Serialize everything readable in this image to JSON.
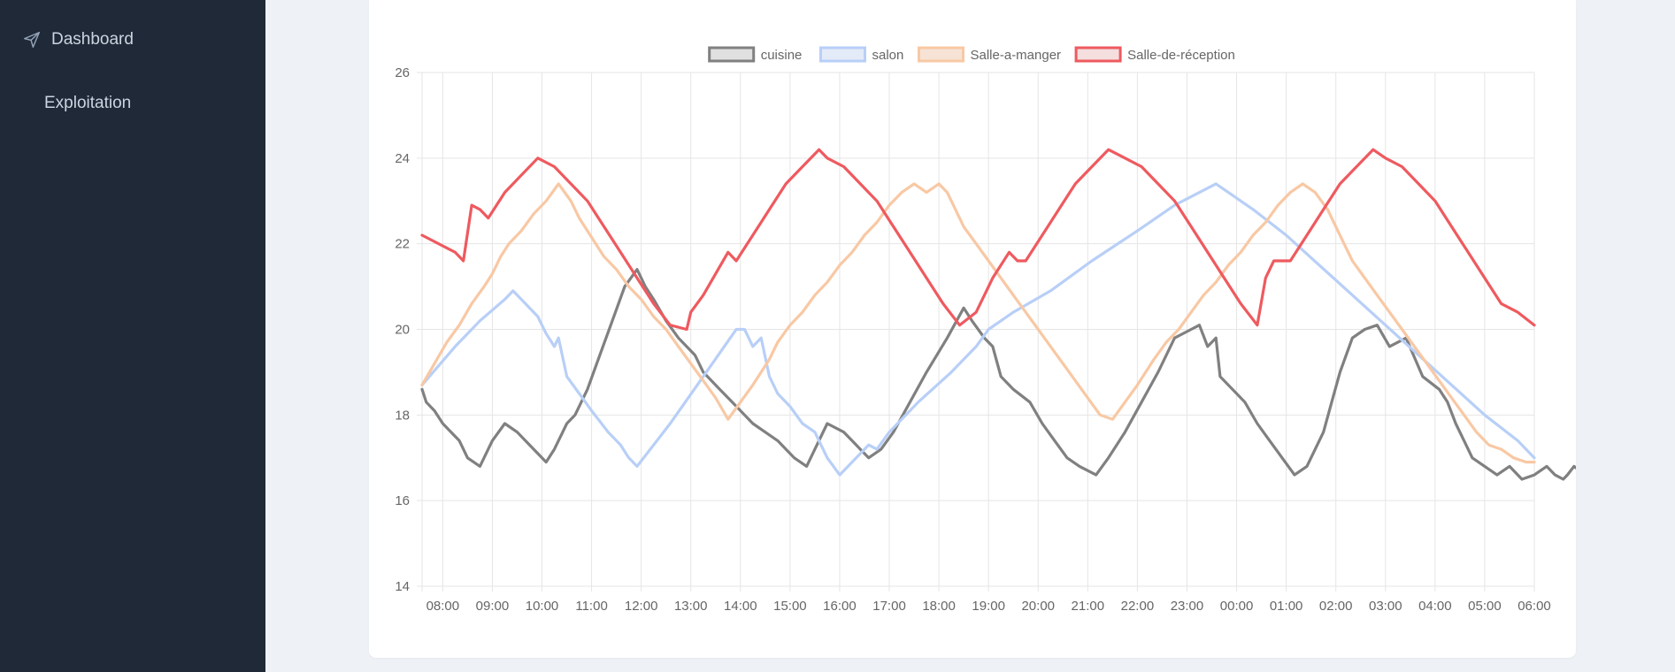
{
  "sidebar": {
    "items": [
      {
        "label": "Dashboard",
        "icon": "send-icon"
      },
      {
        "label": "Exploitation"
      }
    ]
  },
  "chart_data": {
    "type": "line",
    "title": "",
    "xlabel": "",
    "ylabel": "",
    "ylim": [
      14,
      26
    ],
    "yticks": [
      14,
      16,
      18,
      20,
      22,
      24,
      26
    ],
    "grid": true,
    "legend_position": "top",
    "x_range": [
      "07:35",
      "06:00"
    ],
    "x_tick_labels": [
      "08:00",
      "09:00",
      "10:00",
      "11:00",
      "12:00",
      "13:00",
      "14:00",
      "15:00",
      "16:00",
      "17:00",
      "18:00",
      "19:00",
      "20:00",
      "21:00",
      "22:00",
      "23:00",
      "00:00",
      "01:00",
      "02:00",
      "03:00",
      "04:00",
      "05:00",
      "06:00"
    ],
    "series": [
      {
        "name": "cuisine",
        "color": "#808080",
        "fill": "#e0e0e0",
        "x": [
          "07:35",
          "07:40",
          "07:50",
          "08:00",
          "08:20",
          "08:30",
          "08:45",
          "09:00",
          "09:15",
          "09:30",
          "09:40",
          "09:55",
          "10:05",
          "10:15",
          "10:30",
          "10:40",
          "10:55",
          "11:10",
          "11:25",
          "11:40",
          "11:55",
          "12:05",
          "12:15",
          "12:30",
          "12:45",
          "13:05",
          "13:15",
          "13:35",
          "13:50",
          "14:05",
          "14:15",
          "14:30",
          "14:45",
          "15:05",
          "15:20",
          "15:30",
          "15:45",
          "16:05",
          "16:15",
          "16:25",
          "16:35",
          "16:50",
          "17:05",
          "17:25",
          "17:45",
          "18:10",
          "18:30",
          "18:40",
          "18:55",
          "19:05",
          "19:15",
          "19:30",
          "19:50",
          "20:05",
          "20:20",
          "20:35",
          "20:50",
          "21:10",
          "21:25",
          "21:45",
          "22:05",
          "22:25",
          "22:45",
          "23:05",
          "23:15",
          "23:25",
          "23:35",
          "23:40",
          "23:55",
          "24:10",
          "24:25",
          "24:40",
          "24:55",
          "25:10",
          "25:25",
          "25:45",
          "25:55",
          "26:05",
          "26:20",
          "26:35",
          "26:50",
          "27:05",
          "27:25",
          "27:45",
          "28:05",
          "28:15",
          "28:25",
          "28:35",
          "28:45",
          "29:00",
          "29:15",
          "29:30",
          "29:45",
          "30:00",
          "30:15",
          "30:25",
          "30:35",
          "30:40",
          "30:48",
          "30:55",
          "31:00"
        ],
        "y": [
          18.6,
          18.3,
          18.1,
          17.8,
          17.4,
          17.0,
          16.8,
          17.4,
          17.8,
          17.6,
          17.4,
          17.1,
          16.9,
          17.2,
          17.8,
          18.0,
          18.6,
          19.4,
          20.2,
          21.0,
          21.4,
          21.0,
          20.7,
          20.2,
          19.8,
          19.4,
          19.0,
          18.6,
          18.3,
          18.0,
          17.8,
          17.6,
          17.4,
          17.0,
          16.8,
          17.2,
          17.8,
          17.6,
          17.4,
          17.2,
          17.0,
          17.2,
          17.6,
          18.3,
          19.0,
          19.8,
          20.5,
          20.2,
          19.8,
          19.6,
          18.9,
          18.6,
          18.3,
          17.8,
          17.4,
          17.0,
          16.8,
          16.6,
          17.0,
          17.6,
          18.3,
          19.0,
          19.8,
          20.0,
          20.1,
          19.6,
          19.8,
          18.9,
          18.6,
          18.3,
          17.8,
          17.4,
          17.0,
          16.6,
          16.8,
          17.6,
          18.3,
          19.0,
          19.8,
          20.0,
          20.1,
          19.6,
          19.8,
          18.9,
          18.6,
          18.3,
          17.8,
          17.4,
          17.0,
          16.8,
          16.6,
          16.8,
          16.5,
          16.6,
          16.8,
          16.6,
          16.5,
          16.6,
          16.8,
          16.7,
          16.5
        ]
      },
      {
        "name": "salon",
        "color": "#b8cff7",
        "fill": "#e4ebf8",
        "x": [
          "07:35",
          "08:15",
          "08:45",
          "09:15",
          "09:25",
          "09:40",
          "09:55",
          "10:05",
          "10:15",
          "10:20",
          "10:30",
          "10:45",
          "11:00",
          "11:20",
          "11:35",
          "11:45",
          "11:55",
          "12:35",
          "13:15",
          "13:55",
          "14:05",
          "14:15",
          "14:25",
          "14:35",
          "14:45",
          "15:00",
          "15:15",
          "15:30",
          "15:45",
          "16:00",
          "16:15",
          "16:35",
          "16:45",
          "17:00",
          "17:35",
          "18:15",
          "18:45",
          "19:00",
          "19:30",
          "20:15",
          "21:05",
          "22:00",
          "22:45",
          "23:35",
          "00:20",
          "01:00",
          "01:40",
          "02:20",
          "03:00",
          "03:40",
          "04:20",
          "05:00",
          "05:40",
          "06:00"
        ],
        "y": [
          18.7,
          19.6,
          20.2,
          20.7,
          20.9,
          20.6,
          20.3,
          19.9,
          19.6,
          19.8,
          18.9,
          18.5,
          18.1,
          17.6,
          17.3,
          17.0,
          16.8,
          17.8,
          18.9,
          20.0,
          20.0,
          19.6,
          19.8,
          18.9,
          18.5,
          18.2,
          17.8,
          17.6,
          17.0,
          16.6,
          16.9,
          17.3,
          17.2,
          17.6,
          18.3,
          19.0,
          19.6,
          20.0,
          20.4,
          20.9,
          21.6,
          22.3,
          22.9,
          23.4,
          22.8,
          22.2,
          21.5,
          20.8,
          20.1,
          19.4,
          18.7,
          18.0,
          17.4,
          17.0
        ]
      },
      {
        "name": "Salle-a-manger",
        "color": "#f8c8a4",
        "fill": "#f6e3d6",
        "x": [
          "07:35",
          "07:50",
          "08:05",
          "08:20",
          "08:35",
          "08:50",
          "09:00",
          "09:10",
          "09:20",
          "09:35",
          "09:50",
          "10:05",
          "10:20",
          "10:35",
          "10:45",
          "10:55",
          "11:05",
          "11:15",
          "11:30",
          "11:45",
          "12:00",
          "12:15",
          "12:30",
          "12:45",
          "13:00",
          "13:15",
          "13:30",
          "13:45",
          "14:00",
          "14:15",
          "14:25",
          "14:35",
          "14:45",
          "15:00",
          "15:15",
          "15:30",
          "15:45",
          "16:00",
          "16:15",
          "16:30",
          "16:45",
          "17:00",
          "17:15",
          "17:30",
          "17:45",
          "18:00",
          "18:10",
          "18:20",
          "18:30",
          "18:45",
          "19:00",
          "19:15",
          "19:30",
          "19:45",
          "20:00",
          "20:15",
          "20:30",
          "20:45",
          "21:00",
          "21:15",
          "21:30",
          "21:45",
          "22:00",
          "22:10",
          "22:20",
          "22:35",
          "22:50",
          "23:05",
          "23:20",
          "23:35",
          "23:50",
          "00:05",
          "00:20",
          "00:35",
          "00:50",
          "01:05",
          "01:20",
          "01:35",
          "01:50",
          "02:00",
          "02:10",
          "02:20",
          "02:35",
          "02:50",
          "03:05",
          "03:20",
          "03:35",
          "03:50",
          "04:05",
          "04:20",
          "04:35",
          "04:50",
          "05:05",
          "05:20",
          "05:35",
          "05:50",
          "06:00"
        ],
        "y": [
          18.7,
          19.2,
          19.7,
          20.1,
          20.6,
          21.0,
          21.3,
          21.7,
          22.0,
          22.3,
          22.7,
          23.0,
          23.4,
          23.0,
          22.6,
          22.3,
          22.0,
          21.7,
          21.4,
          21.0,
          20.7,
          20.3,
          20.0,
          19.6,
          19.2,
          18.8,
          18.4,
          17.9,
          18.3,
          18.7,
          19.0,
          19.3,
          19.7,
          20.1,
          20.4,
          20.8,
          21.1,
          21.5,
          21.8,
          22.2,
          22.5,
          22.9,
          23.2,
          23.4,
          23.2,
          23.4,
          23.2,
          22.8,
          22.4,
          22.0,
          21.6,
          21.2,
          20.8,
          20.4,
          20.0,
          19.6,
          19.2,
          18.8,
          18.4,
          18.0,
          17.9,
          18.3,
          18.7,
          19.0,
          19.3,
          19.7,
          20.0,
          20.4,
          20.8,
          21.1,
          21.5,
          21.8,
          22.2,
          22.5,
          22.9,
          23.2,
          23.4,
          23.2,
          22.8,
          22.4,
          22.0,
          21.6,
          21.2,
          20.8,
          20.4,
          20.0,
          19.6,
          19.2,
          18.8,
          18.4,
          18.0,
          17.6,
          17.3,
          17.2,
          17.0,
          16.9,
          16.9
        ]
      },
      {
        "name": "Salle-de-réception",
        "color": "#ee5a5f",
        "fill": "#f4dede",
        "x": [
          "07:35",
          "08:15",
          "08:25",
          "08:35",
          "08:45",
          "08:55",
          "09:15",
          "09:35",
          "09:55",
          "10:15",
          "10:35",
          "10:55",
          "11:15",
          "11:35",
          "11:55",
          "12:15",
          "12:35",
          "12:55",
          "13:00",
          "13:15",
          "13:30",
          "13:45",
          "13:55",
          "14:15",
          "14:35",
          "14:55",
          "15:15",
          "15:35",
          "15:45",
          "16:05",
          "16:25",
          "16:45",
          "17:05",
          "17:25",
          "17:45",
          "18:05",
          "18:25",
          "18:45",
          "19:05",
          "19:25",
          "19:35",
          "19:45",
          "20:05",
          "20:25",
          "20:45",
          "21:05",
          "21:25",
          "21:45",
          "22:05",
          "22:25",
          "22:45",
          "23:05",
          "23:25",
          "23:45",
          "00:05",
          "00:25",
          "00:35",
          "00:45",
          "01:05",
          "01:25",
          "01:45",
          "02:05",
          "02:25",
          "02:45",
          "03:00",
          "03:20",
          "03:40",
          "04:00",
          "04:20",
          "04:40",
          "05:00",
          "05:20",
          "05:40",
          "06:00"
        ],
        "y": [
          22.2,
          21.8,
          21.6,
          22.9,
          22.8,
          22.6,
          23.2,
          23.6,
          24.0,
          23.8,
          23.4,
          23.0,
          22.4,
          21.8,
          21.2,
          20.6,
          20.1,
          20.0,
          20.4,
          20.8,
          21.3,
          21.8,
          21.6,
          22.2,
          22.8,
          23.4,
          23.8,
          24.2,
          24.0,
          23.8,
          23.4,
          23.0,
          22.4,
          21.8,
          21.2,
          20.6,
          20.1,
          20.4,
          21.2,
          21.8,
          21.6,
          21.6,
          22.2,
          22.8,
          23.4,
          23.8,
          24.2,
          24.0,
          23.8,
          23.4,
          23.0,
          22.4,
          21.8,
          21.2,
          20.6,
          20.1,
          21.2,
          21.6,
          21.6,
          22.2,
          22.8,
          23.4,
          23.8,
          24.2,
          24.0,
          23.8,
          23.4,
          23.0,
          22.4,
          21.8,
          21.2,
          20.6,
          20.4,
          20.1
        ]
      }
    ]
  }
}
